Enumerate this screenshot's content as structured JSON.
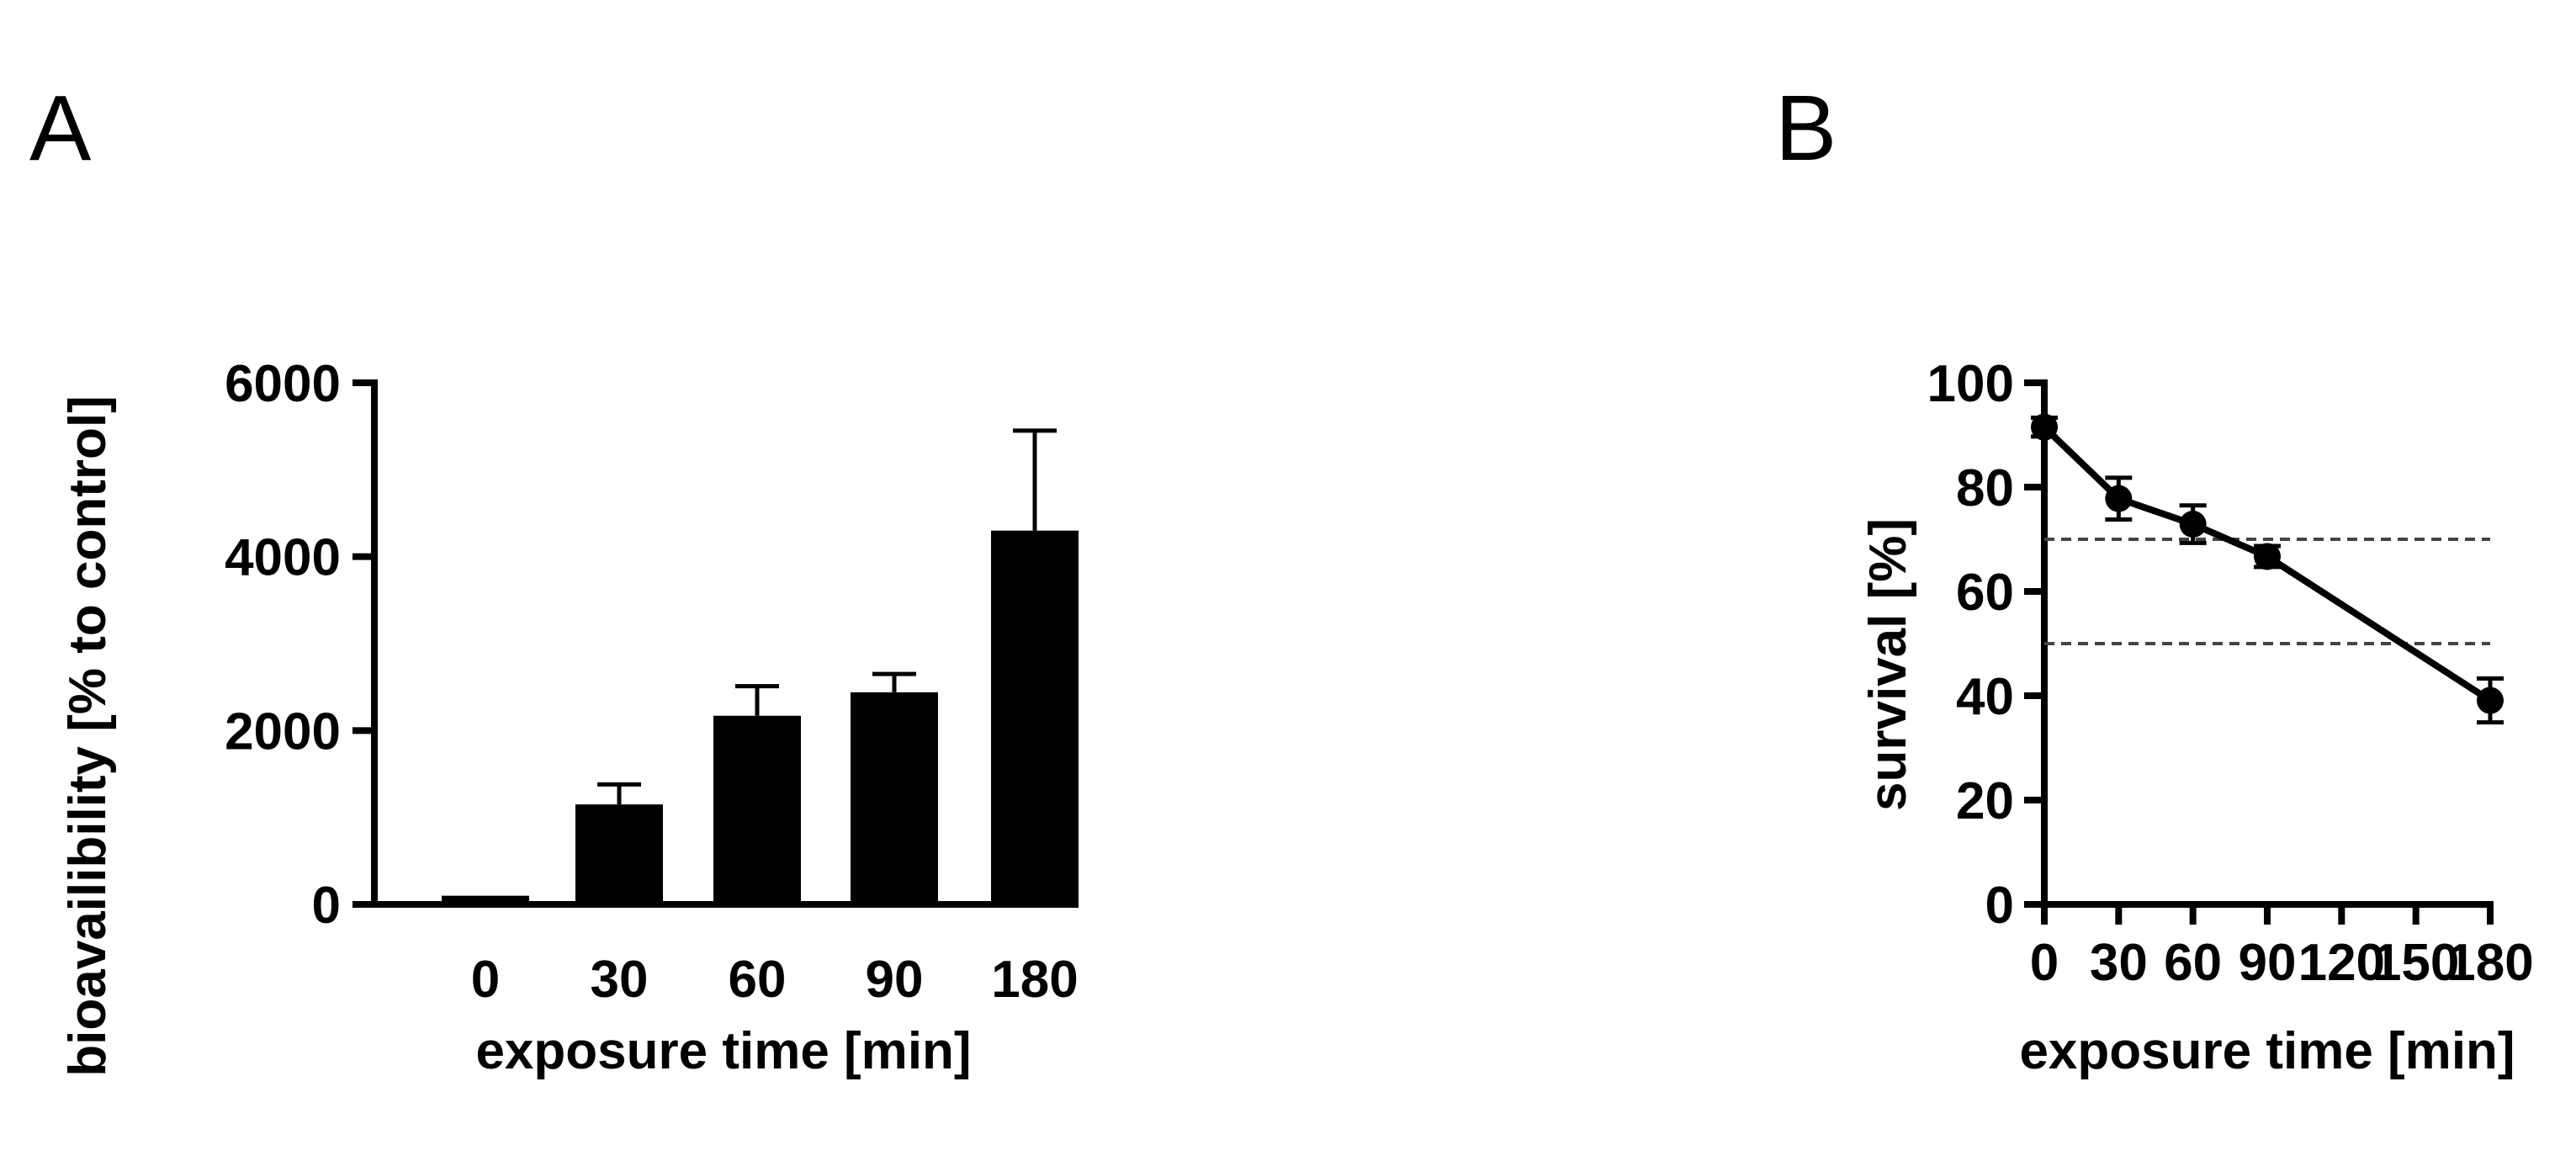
{
  "chart_data": [
    {
      "panel": "A",
      "type": "bar",
      "categories": [
        "0",
        "30",
        "60",
        "90",
        "180"
      ],
      "values": [
        100,
        1150,
        2170,
        2440,
        4300
      ],
      "error_upper": [
        0,
        1380,
        2510,
        2650,
        5450
      ],
      "title": "",
      "xlabel": "exposure time [min]",
      "ylabel": "bioavailibility [% to control]",
      "ylim": [
        0,
        6000
      ],
      "yticks": [
        0,
        2000,
        4000,
        6000
      ],
      "grid": false,
      "color": "#000000"
    },
    {
      "panel": "B",
      "type": "line",
      "x": [
        0,
        30,
        60,
        90,
        180
      ],
      "y": [
        91.5,
        77.8,
        72.9,
        66.7,
        39.1
      ],
      "error": [
        1.8,
        4.0,
        3.6,
        2.0,
        4.2
      ],
      "reference_lines": [
        70,
        50
      ],
      "title": "",
      "xlabel": "exposure time [min]",
      "ylabel": "survival [%]",
      "xlim": [
        0,
        180
      ],
      "ylim": [
        0,
        100
      ],
      "xticks": [
        0,
        30,
        60,
        90,
        120,
        150,
        180
      ],
      "yticks": [
        0,
        20,
        40,
        60,
        80,
        100
      ],
      "grid": false,
      "color": "#000000"
    }
  ]
}
